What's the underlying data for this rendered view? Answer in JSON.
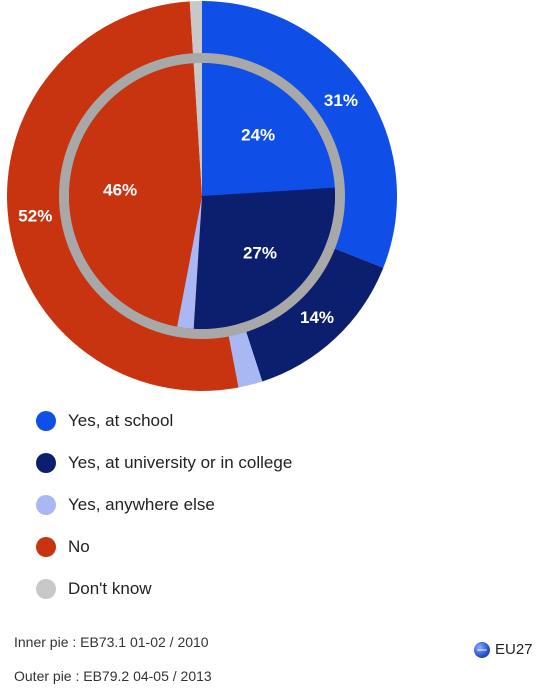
{
  "chart_data": {
    "type": "pie",
    "categories": [
      "Yes, at school",
      "Yes, at university or in college",
      "Yes, anywhere else",
      "No",
      "Don't know"
    ],
    "colors": {
      "Yes, at school": "#0f4fe8",
      "Yes, at university or in college": "#0b1f6e",
      "Yes, anywhere else": "#a9b8f3",
      "No": "#c83410",
      "Don't know": "#c8c8c8"
    },
    "series": [
      {
        "name": "Inner pie",
        "values": [
          24,
          27,
          2,
          46,
          1
        ],
        "labels": [
          "24%",
          "27%",
          "",
          "46%",
          ""
        ]
      },
      {
        "name": "Outer pie",
        "values": [
          31,
          14,
          2,
          52,
          1
        ],
        "labels": [
          "31%",
          "14%",
          "",
          "52%",
          ""
        ]
      }
    ],
    "ring_color": "#a8a8a8"
  },
  "legend": [
    {
      "label": "Yes, at school",
      "color": "#0f4fe8"
    },
    {
      "label": "Yes, at university or in college",
      "color": "#0b1f6e"
    },
    {
      "label": "Yes, anywhere else",
      "color": "#a9b8f3"
    },
    {
      "label": "No",
      "color": "#c83410"
    },
    {
      "label": "Don't know",
      "color": "#c8c8c8"
    }
  ],
  "sources": {
    "inner": "Inner pie :  EB73.1 01-02 / 2010",
    "outer": "Outer pie :  EB79.2 04-05 / 2013"
  },
  "region": {
    "label": "EU27",
    "icon": "globe-icon"
  }
}
